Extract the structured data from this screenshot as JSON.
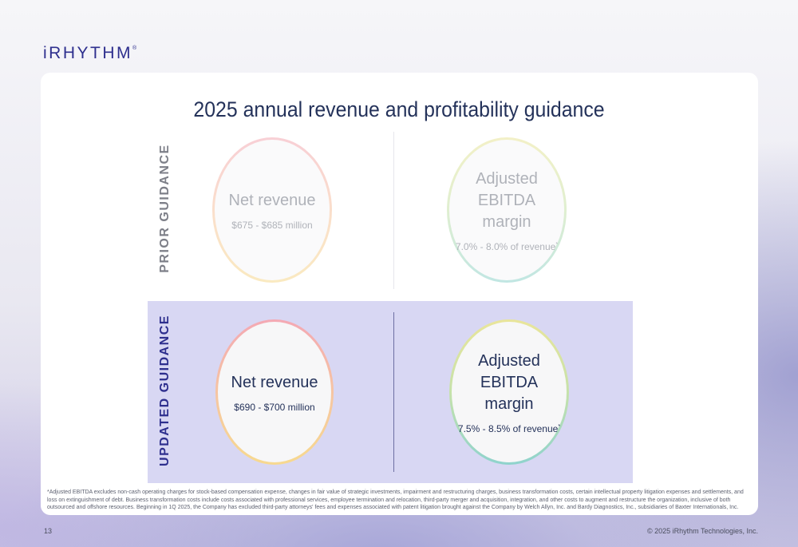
{
  "logo": {
    "text": "iRHYTHM",
    "mark": "®"
  },
  "title": "2025 annual revenue and profitability guidance",
  "prior": {
    "label": "PRIOR GUIDANCE",
    "revenue": {
      "title": "Net revenue",
      "value": "$675 - $685 million"
    },
    "ebitda": {
      "title_line1": "Adjusted EBITDA",
      "title_line2": "margin",
      "value": "7.0% - 8.0% of revenue",
      "mark": "*"
    }
  },
  "updated": {
    "label": "UPDATED GUIDANCE",
    "revenue": {
      "title": "Net revenue",
      "value": "$690 - $700 million"
    },
    "ebitda": {
      "title_line1": "Adjusted EBITDA",
      "title_line2": "margin",
      "value": "7.5% - 8.5% of revenue",
      "mark": "*"
    }
  },
  "footnote": "*Adjusted EBITDA excludes non-cash operating charges for stock-based compensation expense, changes in fair value of strategic investments, impairment and restructuring charges, business transformation costs, certain intellectual property litigation expenses and settlements, and loss on extinguishment of debt. Business transformation costs include costs associated with professional services, employee termination and relocation, third-party merger and acquisition, integration, and other costs to augment and restructure the organization, inclusive of both outsourced and offshore resources. Beginning in 1Q 2025, the Company has excluded third-party attorneys' fees and expenses associated with patent litigation brought against the Company by Welch Allyn, Inc. and Bardy Diagnostics, Inc., subsidiaries of Baxter Internationals, Inc.",
  "page_number": "13",
  "copyright": "© 2025 iRhythm Technologies, Inc."
}
